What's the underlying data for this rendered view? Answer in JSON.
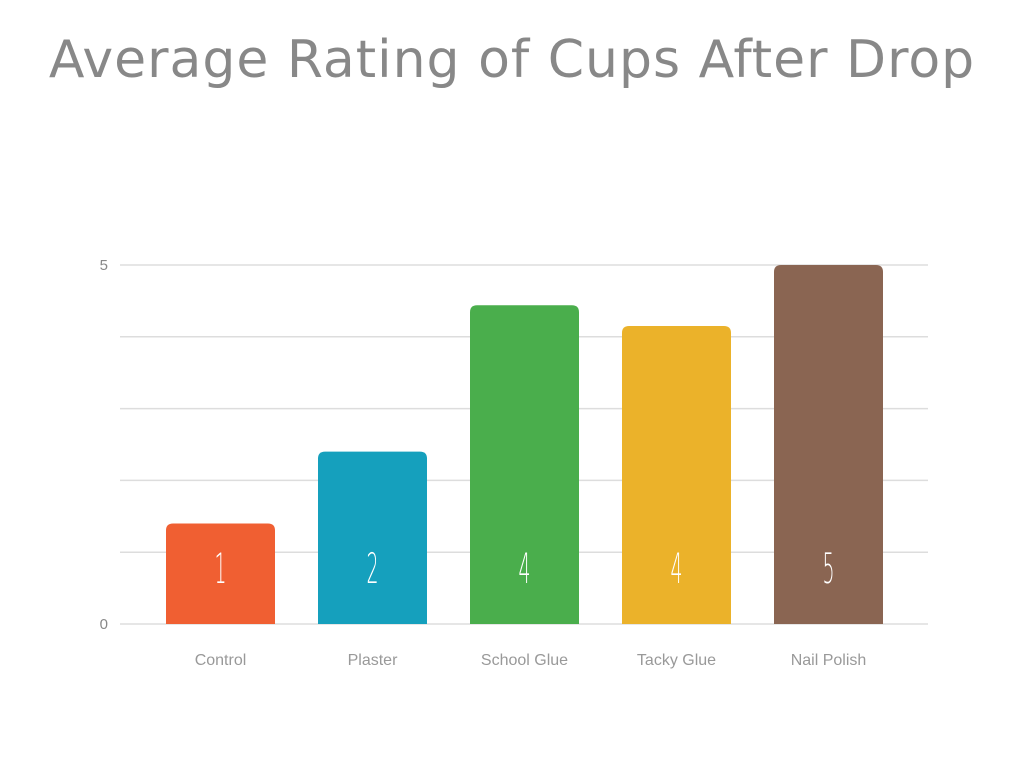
{
  "chart_data": {
    "type": "bar",
    "title": "Average Rating of Cups After Drop",
    "xlabel": "",
    "ylabel": "",
    "ylim": [
      0,
      5
    ],
    "yticks": [
      0,
      5
    ],
    "grid": true,
    "categories": [
      "Control",
      "Plaster",
      "School Glue",
      "Tacky Glue",
      "Nail Polish"
    ],
    "values": [
      1.4,
      2.4,
      4.44,
      4.15,
      5.0
    ],
    "data_labels": [
      "1",
      "2",
      "4",
      "4",
      "5"
    ],
    "colors": [
      "#F05F32",
      "#15A0BD",
      "#4AAE4C",
      "#EBB22A",
      "#8A6552"
    ]
  }
}
